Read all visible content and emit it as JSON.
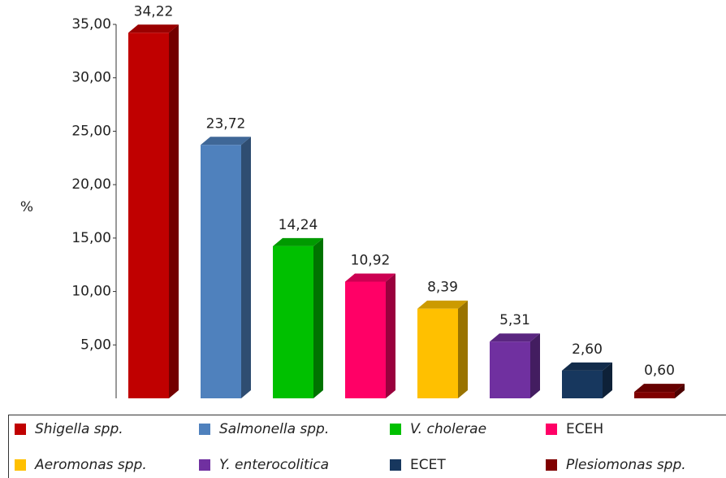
{
  "chart_data": {
    "type": "bar3d",
    "y_label": "%",
    "categories": [
      "Shigella spp.",
      "Salmonella spp.",
      "V. cholerae",
      "ECEH",
      "Aeromonas spp.",
      "Y. enterocolitica",
      "ECET",
      "Plesiomonas spp."
    ],
    "values": [
      34.22,
      23.72,
      14.24,
      10.92,
      8.39,
      5.31,
      2.6,
      0.6
    ],
    "value_labels": [
      "34,22",
      "23,72",
      "14,24",
      "10,92",
      "8,39",
      "5,31",
      "2,60",
      "0,60"
    ],
    "colors": [
      "#c00000",
      "#4f81bd",
      "#00c000",
      "#ff0066",
      "#ffc000",
      "#7030a0",
      "#17375e",
      "#7f0000"
    ],
    "legend_italic": [
      true,
      true,
      true,
      false,
      true,
      true,
      false,
      true
    ],
    "ylim": [
      0,
      35
    ],
    "yticks": [
      {
        "value": 5,
        "label": "5,00"
      },
      {
        "value": 10,
        "label": "10,00"
      },
      {
        "value": 15,
        "label": "15,00"
      },
      {
        "value": 20,
        "label": "20,00"
      },
      {
        "value": 25,
        "label": "25,00"
      },
      {
        "value": 30,
        "label": "30,00"
      },
      {
        "value": 35,
        "label": "35,00"
      }
    ],
    "legend": "bottom"
  }
}
